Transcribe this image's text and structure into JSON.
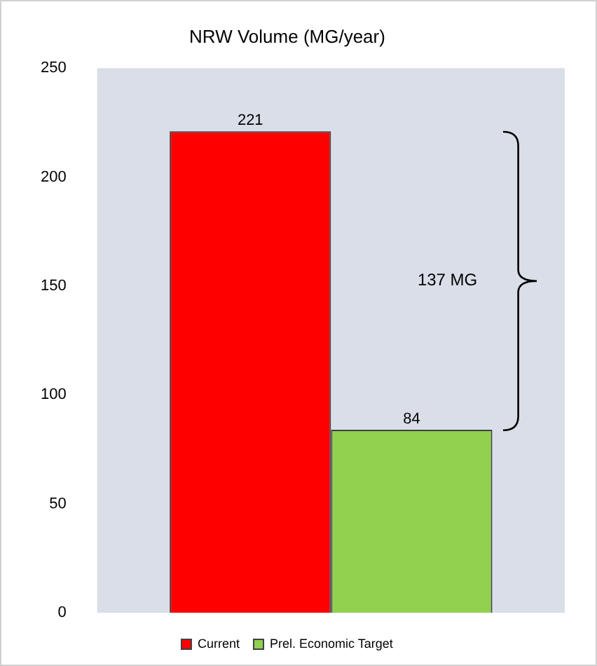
{
  "chart_data": {
    "type": "bar",
    "title": "NRW Volume (MG/year)",
    "categories": [
      null
    ],
    "series": [
      {
        "name": "Current",
        "color": "#ff0000",
        "values": [
          221
        ]
      },
      {
        "name": "Prel. Economic Target",
        "color": "#92d050",
        "values": [
          84
        ]
      }
    ],
    "ylim": [
      0,
      250
    ],
    "yticks": [
      0,
      50,
      100,
      150,
      200,
      250
    ],
    "data_labels": true,
    "legend": "bottom",
    "annotations": [
      "137 MG"
    ]
  }
}
